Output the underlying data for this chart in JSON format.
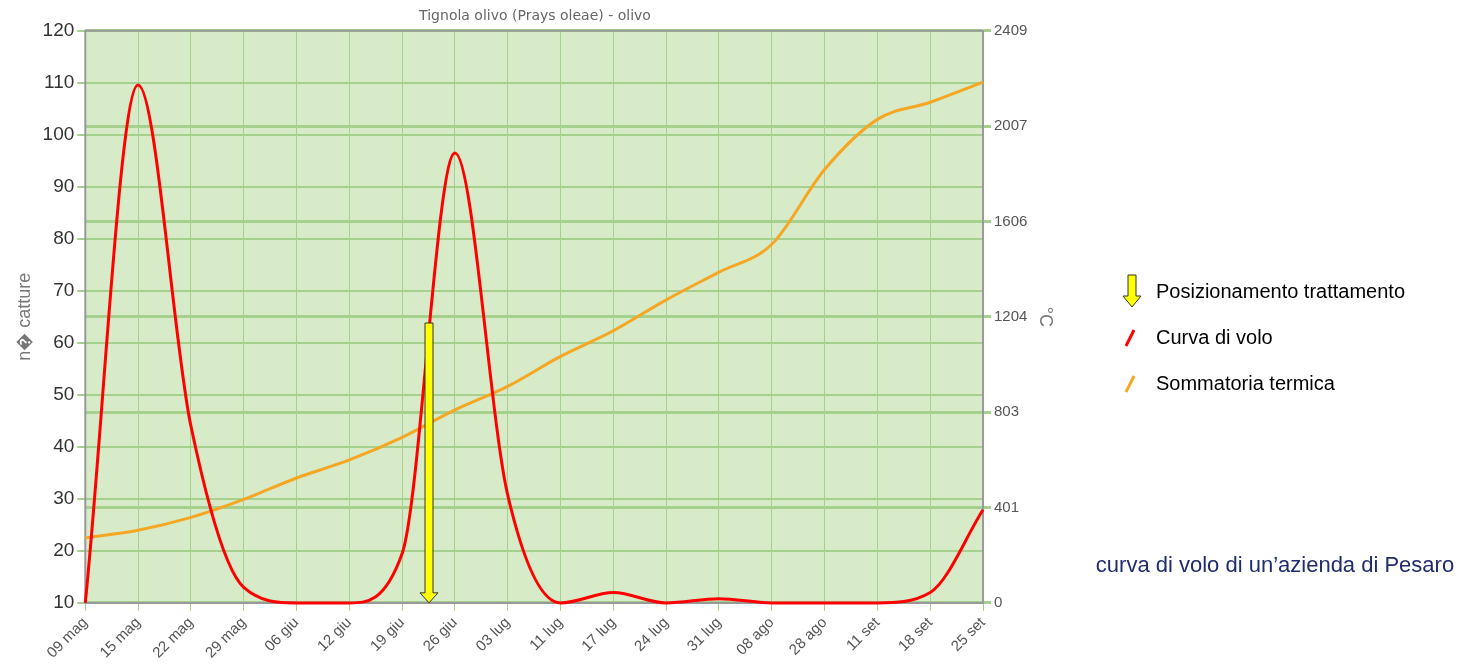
{
  "chart_data": {
    "type": "line",
    "title": "Tignola olivo (Prays oleae) - olivo",
    "ylabel": "n� catture",
    "y2label": "°C",
    "categories": [
      "09 mag",
      "15 mag",
      "22 mag",
      "29 mag",
      "06 giu",
      "12 giu",
      "19 giu",
      "26 giu",
      "03 lug",
      "11 lug",
      "17 lug",
      "24 lug",
      "31 lug",
      "08 ago",
      "28 ago",
      "11 set",
      "18 set",
      "25 set"
    ],
    "series": [
      {
        "name": "Curva di volo",
        "color": "#ff0000",
        "values": [
          10,
          109.6,
          44,
          13,
          10,
          10,
          19.5,
          96.5,
          30.7,
          10,
          12,
          10,
          10.8,
          10,
          10,
          10,
          12,
          27.9
        ]
      },
      {
        "name": "Sommatoria termica",
        "color": "#f5a623",
        "axis": "y2",
        "values": [
          274,
          306,
          360,
          436,
          526,
          602,
          697,
          813,
          912,
          1038,
          1146,
          1276,
          1393,
          1510,
          1825,
          2036,
          2108,
          2193
        ]
      }
    ],
    "ylim": [
      10,
      120
    ],
    "yticks": [
      10,
      20,
      30,
      40,
      50,
      60,
      70,
      80,
      90,
      100,
      110,
      120
    ],
    "y2lim": [
      0,
      2409
    ],
    "y2ticks": [
      0,
      401,
      803,
      1204,
      1606,
      2007,
      2409
    ],
    "grid": true,
    "legend": "right",
    "marker": "none",
    "line_style": "solid",
    "annotations": [
      "Posizionamento trattamento",
      "curva di volo di un’azienda di Pesaro"
    ]
  }
}
